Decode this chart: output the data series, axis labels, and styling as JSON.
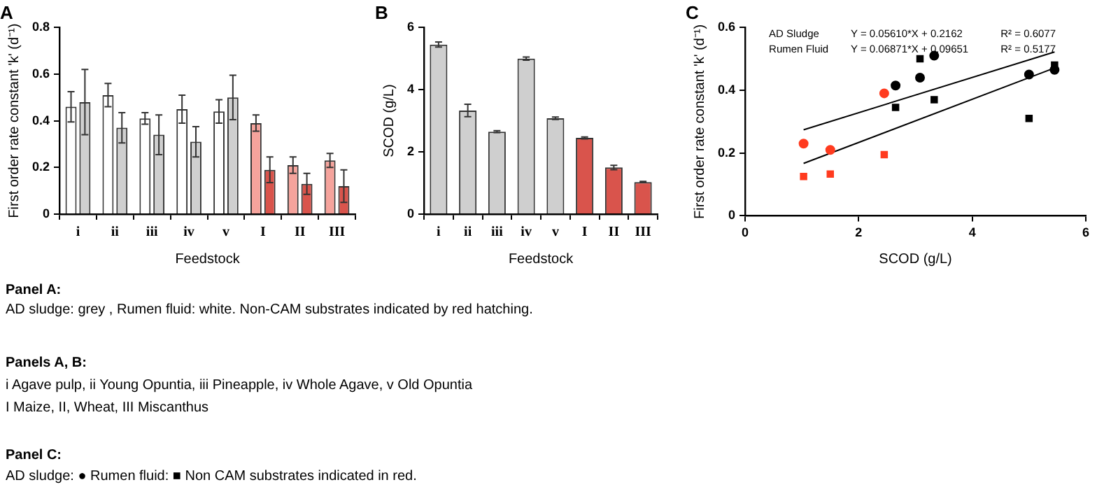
{
  "chart_data": [
    {
      "type": "bar",
      "title": "A",
      "xlabel": "Feedstock",
      "ylabel": "First order rate constant 'k' (d⁻¹)",
      "categories": [
        "i",
        "ii",
        "iii",
        "iv",
        "v",
        "I",
        "II",
        "III"
      ],
      "ylim": [
        0,
        0.8
      ],
      "yticks": [
        0,
        0.2,
        0.4,
        0.6,
        0.8
      ],
      "grid": false,
      "legend": false,
      "series": [
        {
          "colors": [
            "#ffffff",
            "#ffffff",
            "#ffffff",
            "#ffffff",
            "#ffffff",
            "#f5a39c",
            "#f5a39c",
            "#f5a39c"
          ],
          "values": [
            0.46,
            0.51,
            0.41,
            0.45,
            0.44,
            0.39,
            0.21,
            0.23
          ],
          "errors": [
            0.065,
            0.05,
            0.025,
            0.06,
            0.05,
            0.035,
            0.035,
            0.03
          ]
        },
        {
          "colors": [
            "#cfcfcf",
            "#cfcfcf",
            "#cfcfcf",
            "#cfcfcf",
            "#cfcfcf",
            "#d9544c",
            "#d9544c",
            "#d9544c"
          ],
          "values": [
            0.48,
            0.37,
            0.34,
            0.31,
            0.5,
            0.19,
            0.13,
            0.12
          ],
          "errors": [
            0.14,
            0.065,
            0.085,
            0.065,
            0.095,
            0.055,
            0.045,
            0.07
          ]
        }
      ]
    },
    {
      "type": "bar",
      "title": "B",
      "xlabel": "Feedstock",
      "ylabel": "SCOD (g/L)",
      "categories": [
        "i",
        "ii",
        "iii",
        "iv",
        "v",
        "I",
        "II",
        "III"
      ],
      "ylim": [
        0,
        6
      ],
      "yticks": [
        0,
        2,
        4,
        6
      ],
      "grid": false,
      "legend": false,
      "series": [
        {
          "colors": [
            "#cfcfcf",
            "#cfcfcf",
            "#cfcfcf",
            "#cfcfcf",
            "#cfcfcf",
            "#d9544c",
            "#d9544c",
            "#d9544c"
          ],
          "values": [
            5.45,
            3.33,
            2.65,
            5.0,
            3.08,
            2.45,
            1.5,
            1.03
          ],
          "errors": [
            0.08,
            0.2,
            0.03,
            0.05,
            0.04,
            0.03,
            0.07,
            0.02
          ]
        }
      ]
    },
    {
      "type": "scatter",
      "title": "C",
      "xlabel": "SCOD (g/L)",
      "ylabel": "First order rate constant 'k' (d⁻¹)",
      "xlim": [
        0,
        6
      ],
      "xticks": [
        0,
        2,
        4,
        6
      ],
      "ylim": [
        0,
        0.6
      ],
      "yticks": [
        0,
        0.2,
        0.4,
        0.6
      ],
      "grid": false,
      "legend": false,
      "annotations": [
        "AD Sludge",
        "Y = 0.05610*X + 0.2162",
        "R² = 0.6077",
        "Rumen Fluid",
        "Y = 0.06871*X + 0.09651",
        "R² = 0.5177"
      ],
      "series": [
        {
          "marker": "circle",
          "colors": [
            "#ff3b1f",
            "#ff3b1f",
            "#ff3b1f",
            "#000000",
            "#000000",
            "#000000",
            "#000000",
            "#000000"
          ],
          "x": [
            1.03,
            1.5,
            2.45,
            2.65,
            3.08,
            3.33,
            5.0,
            5.45
          ],
          "values": [
            0.23,
            0.21,
            0.39,
            0.415,
            0.44,
            0.51,
            0.45,
            0.465
          ]
        },
        {
          "marker": "square",
          "colors": [
            "#ff3b1f",
            "#ff3b1f",
            "#ff3b1f",
            "#000000",
            "#000000",
            "#000000",
            "#000000",
            "#000000"
          ],
          "x": [
            1.03,
            1.5,
            2.45,
            2.65,
            3.08,
            3.33,
            5.0,
            5.45
          ],
          "values": [
            0.125,
            0.133,
            0.195,
            0.345,
            0.5,
            0.37,
            0.31,
            0.48
          ]
        },
        {
          "type": "line",
          "marker": "none",
          "color": "#000000",
          "x": [
            1.03,
            5.45
          ],
          "values": [
            0.274,
            0.522
          ]
        },
        {
          "type": "line",
          "marker": "none",
          "color": "#000000",
          "x": [
            1.03,
            5.45
          ],
          "values": [
            0.167,
            0.471
          ]
        }
      ]
    },
    {
      "type": "other",
      "annotations": [
        "Panel A:",
        "AD sludge: grey , Rumen fluid: white. Non-CAM substrates indicated by red hatching.",
        "Panels A, B:",
        "i Agave pulp, ii Young Opuntia, iii Pineapple, iv Whole Agave, v Old Opuntia",
        "I Maize, II, Wheat, III Miscanthus",
        "Panel C:",
        "AD sludge: ●   Rumen fluid: ■     Non CAM substrates indicated in red."
      ]
    }
  ]
}
